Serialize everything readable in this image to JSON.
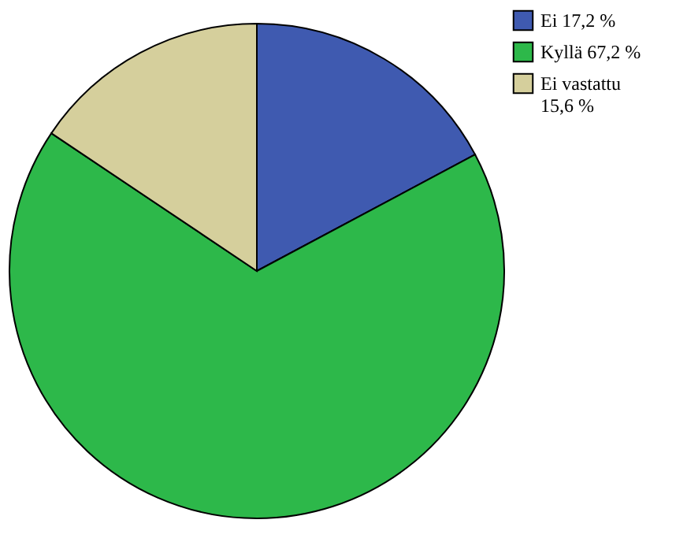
{
  "chart_data": {
    "type": "pie",
    "categories": [
      "Ei 17,2 %",
      "Kyllä 67,2 %",
      "Ei vastattu 15,6 %"
    ],
    "values": [
      17.2,
      67.2,
      15.6
    ],
    "colors": [
      "#3f5ab0",
      "#2db84a",
      "#d5cf9c"
    ],
    "legend": "top right"
  }
}
